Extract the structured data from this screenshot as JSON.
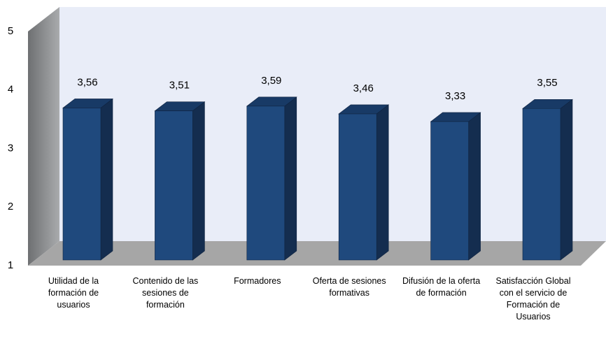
{
  "chart_data": {
    "type": "bar3d",
    "categories": [
      "Utilidad de la formación de usuarios",
      "Contenido de las sesiones de formación",
      "Formadores",
      "Oferta de sesiones formativas",
      "Difusión de la oferta de formación",
      "Satisfacción Global con el servicio de Formación de Usuarios"
    ],
    "values": [
      3.56,
      3.51,
      3.59,
      3.46,
      3.33,
      3.55
    ],
    "value_labels": [
      "3,56",
      "3,51",
      "3,59",
      "3,46",
      "3,33",
      "3,55"
    ],
    "color": "#1f497d",
    "ylim": [
      1,
      5
    ],
    "yticks": [
      1,
      2,
      3,
      4,
      5
    ]
  }
}
